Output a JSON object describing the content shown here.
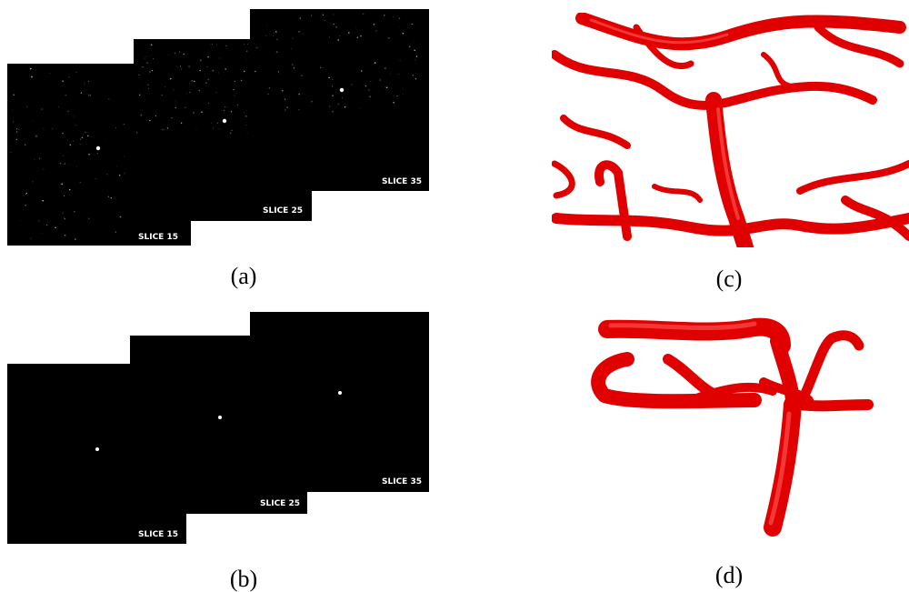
{
  "panels": [
    {
      "label": "(a)",
      "slices": [
        "SLICE 15",
        "SLICE 25",
        "SLICE 35"
      ]
    },
    {
      "label": "(b)",
      "slices": [
        "SLICE 15",
        "SLICE 25",
        "SLICE 35"
      ]
    },
    {
      "label": "(c)"
    },
    {
      "label": "(d)"
    }
  ]
}
